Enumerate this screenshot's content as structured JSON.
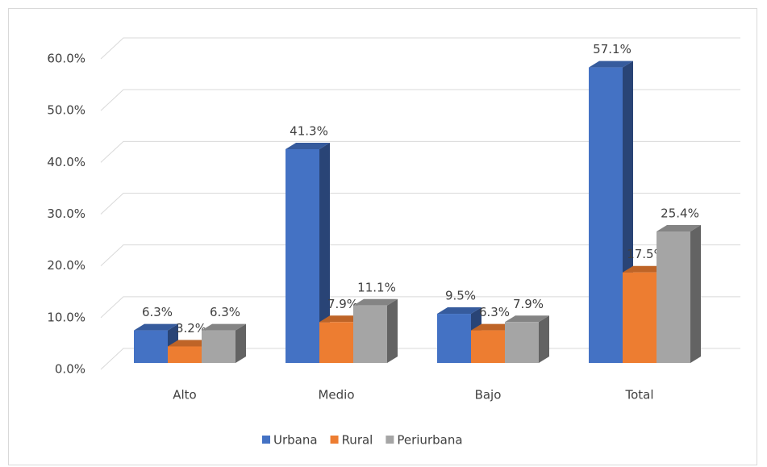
{
  "chart_data": {
    "type": "bar3d",
    "categories": [
      "Alto",
      "Medio",
      "Bajo",
      "Total"
    ],
    "series": [
      {
        "name": "Urbana",
        "color": "#4472c4",
        "values": [
          6.3,
          41.3,
          9.5,
          57.1
        ],
        "value_labels": [
          "6.3%",
          "41.3%",
          "9.5%",
          "57.1%"
        ]
      },
      {
        "name": "Rural",
        "color": "#ed7d31",
        "values": [
          3.2,
          7.9,
          6.3,
          17.5
        ],
        "value_labels": [
          "3.2%",
          "7.9%",
          "6.3%",
          "17.5%"
        ]
      },
      {
        "name": "Periurbana",
        "color": "#a5a5a5",
        "values": [
          6.3,
          11.1,
          7.9,
          25.4
        ],
        "value_labels": [
          "6.3%",
          "11.1%",
          "7.9%",
          "25.4%"
        ]
      }
    ],
    "ylim": [
      0,
      60
    ],
    "yticks": [
      {
        "value": 0,
        "label": "0.0%"
      },
      {
        "value": 10,
        "label": "10.0%"
      },
      {
        "value": 20,
        "label": "20.0%"
      },
      {
        "value": 30,
        "label": "30.0%"
      },
      {
        "value": 40,
        "label": "40.0%"
      },
      {
        "value": 50,
        "label": "50.0%"
      },
      {
        "value": 60,
        "label": "60.0%"
      }
    ],
    "grid": true,
    "legend": "bottom"
  }
}
